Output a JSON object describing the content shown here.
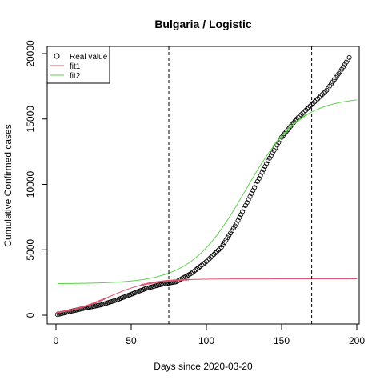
{
  "chart_data": {
    "type": "scatter",
    "title": "Bulgaria / Logistic",
    "xlabel": "Days since 2020-03-20",
    "ylabel": "Cumulative Confirmed cases",
    "xlim": [
      0,
      200
    ],
    "ylim": [
      0,
      20000
    ],
    "x_ticks": [
      0,
      50,
      100,
      150,
      200
    ],
    "y_ticks": [
      0,
      5000,
      10000,
      15000,
      20000
    ],
    "grid": false,
    "legend": {
      "placement": "top-left",
      "entries": [
        {
          "label": "Real value",
          "marker": "circle-open",
          "color": "#000000"
        },
        {
          "label": "fit1",
          "marker": "line",
          "color": "#DF536B"
        },
        {
          "label": "fit2",
          "marker": "line",
          "color": "#61D04F"
        }
      ]
    },
    "vertical_lines": [
      75,
      170
    ],
    "colors": {
      "real": "#000000",
      "fit1": "#DF536B",
      "fit2": "#61D04F"
    },
    "real_value": {
      "name": "Real value",
      "x_range": [
        1,
        195
      ],
      "anchors": [
        [
          1,
          50
        ],
        [
          10,
          300
        ],
        [
          20,
          560
        ],
        [
          30,
          790
        ],
        [
          40,
          1150
        ],
        [
          50,
          1600
        ],
        [
          60,
          2050
        ],
        [
          70,
          2350
        ],
        [
          80,
          2550
        ],
        [
          90,
          3200
        ],
        [
          100,
          4100
        ],
        [
          110,
          5200
        ],
        [
          120,
          7000
        ],
        [
          130,
          9300
        ],
        [
          140,
          11600
        ],
        [
          150,
          13600
        ],
        [
          160,
          15000
        ],
        [
          170,
          16100
        ],
        [
          180,
          17200
        ],
        [
          190,
          18800
        ],
        [
          195,
          19700
        ]
      ]
    },
    "fit1": {
      "name": "fit1",
      "x_range": [
        1,
        200
      ],
      "K": 2780,
      "r": 0.072,
      "x0": 35,
      "overlays_points": true
    },
    "fit2": {
      "name": "fit2",
      "x_range": [
        1,
        200
      ],
      "K": 14300,
      "r": 0.055,
      "x0": 126,
      "b": 2400,
      "overlays_points": true
    }
  }
}
